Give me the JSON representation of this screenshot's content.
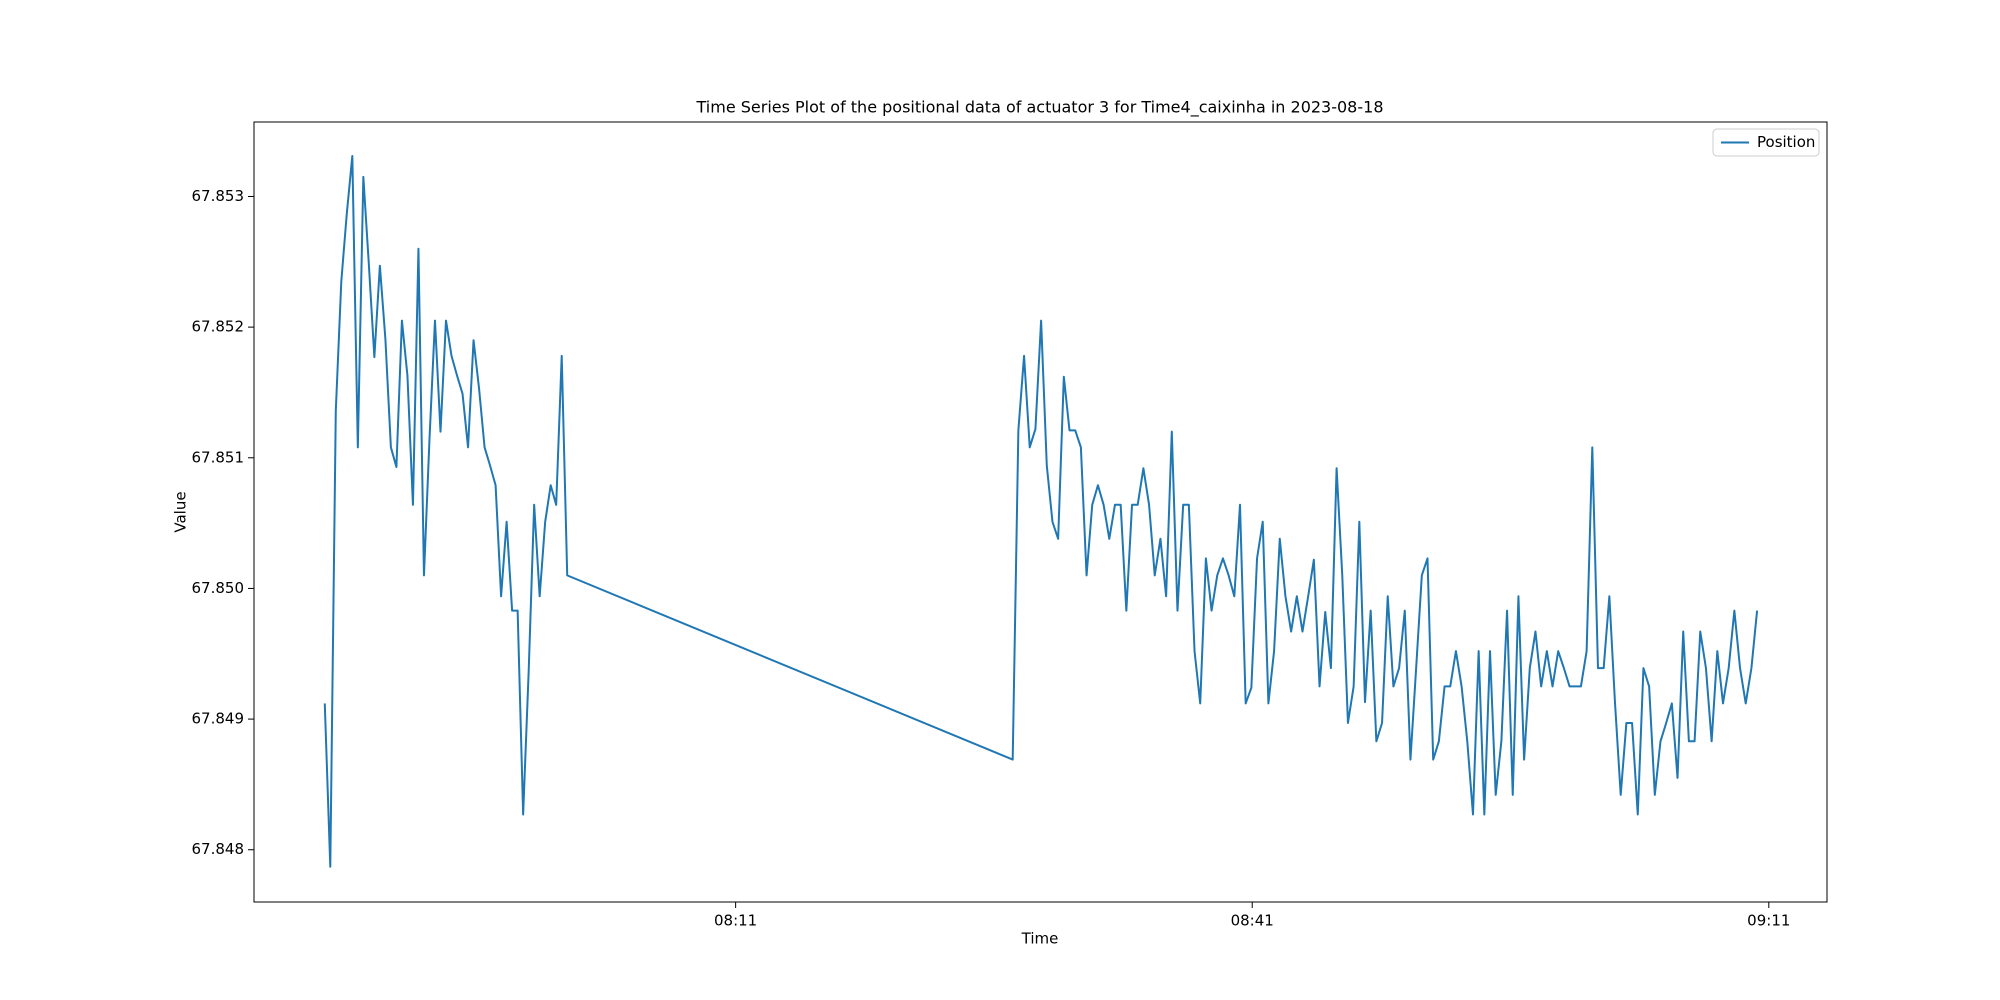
{
  "chart_data": {
    "type": "line",
    "title": "Time Series Plot of the positional data of actuator 3 for Time4_caixinha in 2023-08-18",
    "x_label": "Time",
    "y_label": "Value",
    "x": [
      467.14,
      467.46,
      467.78,
      468.1,
      468.42,
      468.74,
      469.06,
      469.38,
      469.7,
      470.02,
      470.34,
      470.66,
      470.98,
      471.3,
      471.62,
      471.94,
      472.26,
      472.58,
      472.9,
      473.22,
      473.54,
      473.86,
      474.18,
      474.5,
      474.82,
      475.14,
      475.46,
      475.78,
      476.1,
      476.42,
      476.74,
      477.06,
      477.38,
      477.7,
      478.02,
      478.34,
      478.66,
      478.98,
      479.3,
      479.62,
      479.94,
      480.26,
      480.58,
      480.9,
      481.22,
      507.09,
      507.42,
      507.75,
      508.08,
      508.41,
      508.74,
      509.07,
      509.4,
      509.73,
      510.06,
      510.39,
      510.72,
      511.05,
      511.38,
      511.71,
      512.04,
      512.37,
      512.7,
      513.03,
      513.36,
      513.69,
      514.02,
      514.35,
      514.68,
      515.01,
      515.34,
      515.67,
      516.0,
      516.33,
      516.66,
      516.99,
      517.32,
      517.65,
      517.98,
      518.31,
      518.64,
      518.97,
      519.3,
      519.63,
      519.96,
      520.29,
      520.62,
      520.95,
      521.28,
      521.61,
      521.94,
      522.27,
      522.6,
      522.93,
      523.26,
      523.59,
      523.92,
      524.25,
      524.58,
      524.91,
      525.24,
      525.57,
      525.9,
      526.23,
      526.56,
      526.89,
      527.22,
      527.55,
      527.88,
      528.21,
      528.54,
      528.87,
      529.2,
      529.53,
      529.86,
      530.19,
      530.52,
      530.85,
      531.18,
      531.51,
      531.84,
      532.17,
      532.5,
      532.83,
      533.16,
      533.49,
      533.82,
      534.15,
      534.48,
      534.81,
      535.14,
      535.47,
      535.8,
      536.13,
      536.46,
      536.79,
      537.12,
      537.45,
      537.78,
      538.11,
      538.44,
      538.77,
      539.1,
      539.43,
      539.76,
      540.09,
      540.42,
      540.75,
      541.08,
      541.41,
      541.74,
      542.07,
      542.4,
      542.73,
      543.06,
      543.39,
      543.72,
      544.05,
      544.38,
      544.71,
      545.04,
      545.37,
      545.7,
      546.03,
      546.36,
      546.69,
      547.02,
      547.35,
      547.68,
      548.01,
      548.34,
      548.67,
      549.0,
      549.33,
      549.66,
      549.99,
      550.32
    ],
    "series": [
      {
        "name": "Position",
        "color": "#1f77b4",
        "values": [
          67.84912,
          67.84787,
          67.85136,
          67.85235,
          67.85287,
          67.85331,
          67.85108,
          67.85315,
          67.85248,
          67.85177,
          67.85247,
          67.85191,
          67.85108,
          67.85093,
          67.85205,
          67.85163,
          67.85064,
          67.8526,
          67.8501,
          67.85114,
          67.85205,
          67.8512,
          67.85205,
          67.85178,
          67.85163,
          67.85149,
          67.85108,
          67.8519,
          67.85153,
          67.85108,
          67.85094,
          67.85079,
          67.84994,
          67.85051,
          67.84983,
          67.84983,
          67.84827,
          67.84936,
          67.85064,
          67.84994,
          67.85051,
          67.85079,
          67.85064,
          67.85178,
          67.8501,
          67.84869,
          67.85121,
          67.85178,
          67.85108,
          67.85122,
          67.85205,
          67.85094,
          67.85051,
          67.85038,
          67.85162,
          67.85121,
          67.85121,
          67.85108,
          67.8501,
          67.85064,
          67.85079,
          67.85064,
          67.85038,
          67.85064,
          67.85064,
          67.84983,
          67.85064,
          67.85064,
          67.85092,
          67.85064,
          67.8501,
          67.85038,
          67.84994,
          67.8512,
          67.84983,
          67.85064,
          67.85064,
          67.84952,
          67.84912,
          67.85023,
          67.84983,
          67.8501,
          67.85023,
          67.8501,
          67.84994,
          67.85064,
          67.84912,
          67.84924,
          67.85023,
          67.85051,
          67.84912,
          67.84952,
          67.85038,
          67.84994,
          67.84967,
          67.84994,
          67.84967,
          67.84994,
          67.85022,
          67.84925,
          67.84982,
          67.84939,
          67.85092,
          67.8501,
          67.84897,
          67.84925,
          67.85051,
          67.84913,
          67.84983,
          67.84883,
          67.84897,
          67.84994,
          67.84925,
          67.84939,
          67.84983,
          67.84869,
          67.84939,
          67.8501,
          67.85023,
          67.84869,
          67.84883,
          67.84925,
          67.84925,
          67.84952,
          67.84925,
          67.84883,
          67.84827,
          67.84952,
          67.84827,
          67.84952,
          67.84842,
          67.84883,
          67.84983,
          67.84842,
          67.84994,
          67.84869,
          67.84939,
          67.84967,
          67.84925,
          67.84952,
          67.84925,
          67.84952,
          67.84939,
          67.84925,
          67.84925,
          67.84925,
          67.84952,
          67.85108,
          67.84939,
          67.84939,
          67.84994,
          67.84912,
          67.84842,
          67.84897,
          67.84897,
          67.84827,
          67.84939,
          67.84925,
          67.84842,
          67.84883,
          67.84897,
          67.84912,
          67.84855,
          67.84967,
          67.84883,
          67.84883,
          67.84967,
          67.84939,
          67.84883,
          67.84952,
          67.84912,
          67.84939,
          67.84983,
          67.84939,
          67.84912,
          67.84939,
          67.84983
        ]
      }
    ],
    "xlim": [
      463.03,
      554.38
    ],
    "xticks": [
      {
        "value": 491,
        "label": "08:11"
      },
      {
        "value": 521,
        "label": "08:41"
      },
      {
        "value": 551,
        "label": "09:11"
      }
    ],
    "ylim": [
      67.8476,
      67.85357
    ],
    "yticks": [
      67.848,
      67.849,
      {
        "value": 67.85,
        "label": "67.850"
      },
      67.851,
      67.852,
      67.853
    ],
    "grid": false,
    "legend": "upper right"
  }
}
